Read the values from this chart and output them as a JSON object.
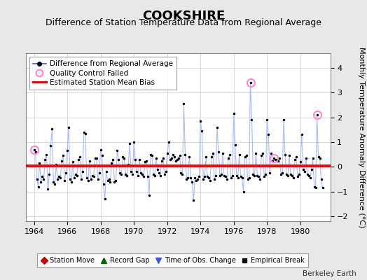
{
  "title": "COOKSHIRE",
  "subtitle": "Difference of Station Temperature Data from Regional Average",
  "ylabel": "Monthly Temperature Anomaly Difference (°C)",
  "credit": "Berkeley Earth",
  "xlim": [
    1963.5,
    1981.8
  ],
  "ylim": [
    -2.2,
    4.6
  ],
  "yticks": [
    -2,
    -1,
    0,
    1,
    2,
    3,
    4
  ],
  "xticks": [
    1964,
    1966,
    1968,
    1970,
    1972,
    1974,
    1976,
    1978,
    1980
  ],
  "bias_line": 0.05,
  "line_color": "#4455ee",
  "line_color_light": "#aabbff",
  "dot_color": "#000000",
  "bias_color": "#ff0000",
  "qc_color": "#ff88cc",
  "background_color": "#e8e8e8",
  "plot_bg_color": "#ffffff",
  "data": [
    [
      1964.0,
      0.7
    ],
    [
      1964.083,
      0.6
    ],
    [
      1964.167,
      -0.5
    ],
    [
      1964.25,
      -0.8
    ],
    [
      1964.333,
      0.15
    ],
    [
      1964.417,
      -0.6
    ],
    [
      1964.5,
      -0.4
    ],
    [
      1964.583,
      -0.5
    ],
    [
      1964.667,
      0.3
    ],
    [
      1964.75,
      0.5
    ],
    [
      1964.833,
      -0.9
    ],
    [
      1964.917,
      -0.3
    ],
    [
      1965.0,
      0.85
    ],
    [
      1965.083,
      1.55
    ],
    [
      1965.167,
      -0.6
    ],
    [
      1965.25,
      -0.7
    ],
    [
      1965.333,
      0.1
    ],
    [
      1965.417,
      -0.5
    ],
    [
      1965.5,
      -0.4
    ],
    [
      1965.583,
      -0.45
    ],
    [
      1965.667,
      0.25
    ],
    [
      1965.75,
      0.45
    ],
    [
      1965.833,
      -0.55
    ],
    [
      1965.917,
      -0.25
    ],
    [
      1966.0,
      0.65
    ],
    [
      1966.083,
      1.6
    ],
    [
      1966.167,
      -0.5
    ],
    [
      1966.25,
      -0.6
    ],
    [
      1966.333,
      0.2
    ],
    [
      1966.417,
      -0.45
    ],
    [
      1966.5,
      -0.3
    ],
    [
      1966.583,
      -0.35
    ],
    [
      1966.667,
      0.3
    ],
    [
      1966.75,
      0.4
    ],
    [
      1966.833,
      -0.5
    ],
    [
      1966.917,
      -0.2
    ],
    [
      1967.0,
      1.4
    ],
    [
      1967.083,
      1.35
    ],
    [
      1967.167,
      -0.45
    ],
    [
      1967.25,
      -0.55
    ],
    [
      1967.333,
      0.25
    ],
    [
      1967.417,
      -0.5
    ],
    [
      1967.5,
      -0.35
    ],
    [
      1967.583,
      -0.4
    ],
    [
      1967.667,
      0.35
    ],
    [
      1967.75,
      0.35
    ],
    [
      1967.833,
      -0.5
    ],
    [
      1967.917,
      -0.25
    ],
    [
      1968.0,
      0.7
    ],
    [
      1968.083,
      0.45
    ],
    [
      1968.167,
      -0.7
    ],
    [
      1968.25,
      -1.3
    ],
    [
      1968.333,
      -0.2
    ],
    [
      1968.417,
      -0.55
    ],
    [
      1968.5,
      -0.5
    ],
    [
      1968.583,
      -0.6
    ],
    [
      1968.667,
      0.15
    ],
    [
      1968.75,
      0.3
    ],
    [
      1968.833,
      -0.6
    ],
    [
      1968.917,
      -0.55
    ],
    [
      1969.0,
      0.65
    ],
    [
      1969.083,
      0.3
    ],
    [
      1969.167,
      -0.25
    ],
    [
      1969.25,
      -0.3
    ],
    [
      1969.333,
      0.4
    ],
    [
      1969.417,
      0.35
    ],
    [
      1969.5,
      -0.3
    ],
    [
      1969.583,
      -0.35
    ],
    [
      1969.667,
      0.1
    ],
    [
      1969.75,
      0.95
    ],
    [
      1969.833,
      -0.2
    ],
    [
      1969.917,
      -0.3
    ],
    [
      1970.0,
      1.0
    ],
    [
      1970.083,
      0.3
    ],
    [
      1970.167,
      -0.2
    ],
    [
      1970.25,
      -0.35
    ],
    [
      1970.333,
      0.3
    ],
    [
      1970.417,
      -0.25
    ],
    [
      1970.5,
      -0.3
    ],
    [
      1970.583,
      -0.4
    ],
    [
      1970.667,
      0.2
    ],
    [
      1970.75,
      0.25
    ],
    [
      1970.833,
      -0.4
    ],
    [
      1970.917,
      -1.15
    ],
    [
      1971.0,
      0.5
    ],
    [
      1971.083,
      0.45
    ],
    [
      1971.167,
      -0.3
    ],
    [
      1971.25,
      -0.35
    ],
    [
      1971.333,
      0.35
    ],
    [
      1971.417,
      -0.1
    ],
    [
      1971.5,
      -0.25
    ],
    [
      1971.583,
      -0.35
    ],
    [
      1971.667,
      0.25
    ],
    [
      1971.75,
      0.35
    ],
    [
      1971.833,
      -0.3
    ],
    [
      1971.917,
      -0.2
    ],
    [
      1972.0,
      0.55
    ],
    [
      1972.083,
      1.0
    ],
    [
      1972.167,
      0.3
    ],
    [
      1972.25,
      0.35
    ],
    [
      1972.333,
      0.5
    ],
    [
      1972.417,
      0.4
    ],
    [
      1972.5,
      0.25
    ],
    [
      1972.583,
      0.3
    ],
    [
      1972.667,
      0.35
    ],
    [
      1972.75,
      0.45
    ],
    [
      1972.833,
      -0.25
    ],
    [
      1972.917,
      -0.3
    ],
    [
      1973.0,
      2.55
    ],
    [
      1973.083,
      0.5
    ],
    [
      1973.167,
      -0.5
    ],
    [
      1973.25,
      -0.45
    ],
    [
      1973.333,
      0.4
    ],
    [
      1973.417,
      -0.45
    ],
    [
      1973.5,
      -0.6
    ],
    [
      1973.583,
      -1.35
    ],
    [
      1973.667,
      -0.45
    ],
    [
      1973.75,
      -0.55
    ],
    [
      1973.833,
      -0.5
    ],
    [
      1973.917,
      -0.4
    ],
    [
      1974.0,
      1.85
    ],
    [
      1974.083,
      1.45
    ],
    [
      1974.167,
      -0.5
    ],
    [
      1974.25,
      -0.4
    ],
    [
      1974.333,
      0.4
    ],
    [
      1974.417,
      -0.4
    ],
    [
      1974.5,
      -0.45
    ],
    [
      1974.583,
      -0.55
    ],
    [
      1974.667,
      0.4
    ],
    [
      1974.75,
      0.55
    ],
    [
      1974.833,
      -0.5
    ],
    [
      1974.917,
      -0.35
    ],
    [
      1975.0,
      1.6
    ],
    [
      1975.083,
      0.6
    ],
    [
      1975.167,
      -0.35
    ],
    [
      1975.25,
      -0.3
    ],
    [
      1975.333,
      0.55
    ],
    [
      1975.417,
      -0.35
    ],
    [
      1975.5,
      -0.4
    ],
    [
      1975.583,
      -0.5
    ],
    [
      1975.667,
      0.35
    ],
    [
      1975.75,
      0.5
    ],
    [
      1975.833,
      -0.45
    ],
    [
      1975.917,
      -0.35
    ],
    [
      1976.0,
      2.15
    ],
    [
      1976.083,
      0.9
    ],
    [
      1976.167,
      -0.35
    ],
    [
      1976.25,
      -0.45
    ],
    [
      1976.333,
      0.5
    ],
    [
      1976.417,
      -0.4
    ],
    [
      1976.5,
      -0.45
    ],
    [
      1976.583,
      -1.0
    ],
    [
      1976.667,
      0.4
    ],
    [
      1976.75,
      0.45
    ],
    [
      1976.833,
      -0.5
    ],
    [
      1976.917,
      -0.45
    ],
    [
      1977.0,
      3.4
    ],
    [
      1977.083,
      1.9
    ],
    [
      1977.167,
      -0.3
    ],
    [
      1977.25,
      -0.35
    ],
    [
      1977.333,
      0.55
    ],
    [
      1977.417,
      -0.35
    ],
    [
      1977.5,
      -0.4
    ],
    [
      1977.583,
      -0.5
    ],
    [
      1977.667,
      0.45
    ],
    [
      1977.75,
      0.55
    ],
    [
      1977.833,
      -0.4
    ],
    [
      1977.917,
      -0.3
    ],
    [
      1978.0,
      1.9
    ],
    [
      1978.083,
      1.3
    ],
    [
      1978.167,
      -0.25
    ],
    [
      1978.25,
      0.55
    ],
    [
      1978.333,
      0.25
    ],
    [
      1978.417,
      0.35
    ],
    [
      1978.5,
      0.3
    ],
    [
      1978.583,
      0.3
    ],
    [
      1978.667,
      0.25
    ],
    [
      1978.75,
      0.35
    ],
    [
      1978.833,
      -0.3
    ],
    [
      1978.917,
      -0.25
    ],
    [
      1979.0,
      1.9
    ],
    [
      1979.083,
      0.5
    ],
    [
      1979.167,
      -0.3
    ],
    [
      1979.25,
      -0.35
    ],
    [
      1979.333,
      0.45
    ],
    [
      1979.417,
      -0.3
    ],
    [
      1979.5,
      -0.35
    ],
    [
      1979.583,
      -0.45
    ],
    [
      1979.667,
      0.3
    ],
    [
      1979.75,
      0.4
    ],
    [
      1979.833,
      -0.4
    ],
    [
      1979.917,
      -0.3
    ],
    [
      1980.0,
      0.2
    ],
    [
      1980.083,
      1.3
    ],
    [
      1980.167,
      -0.1
    ],
    [
      1980.25,
      -0.2
    ],
    [
      1980.333,
      0.35
    ],
    [
      1980.417,
      -0.3
    ],
    [
      1980.5,
      -0.35
    ],
    [
      1980.583,
      -0.45
    ],
    [
      1980.667,
      -0.1
    ],
    [
      1980.75,
      0.35
    ],
    [
      1980.833,
      -0.8
    ],
    [
      1980.917,
      -0.85
    ],
    [
      1981.0,
      2.1
    ],
    [
      1981.083,
      0.4
    ],
    [
      1981.167,
      0.35
    ],
    [
      1981.25,
      -0.5
    ],
    [
      1981.333,
      -0.85
    ]
  ],
  "qc_points": [
    [
      1964.0,
      0.7
    ],
    [
      1977.0,
      3.4
    ],
    [
      1978.417,
      0.35
    ],
    [
      1981.0,
      2.1
    ]
  ],
  "title_fontsize": 13,
  "subtitle_fontsize": 9,
  "tick_fontsize": 8,
  "ylabel_fontsize": 8
}
